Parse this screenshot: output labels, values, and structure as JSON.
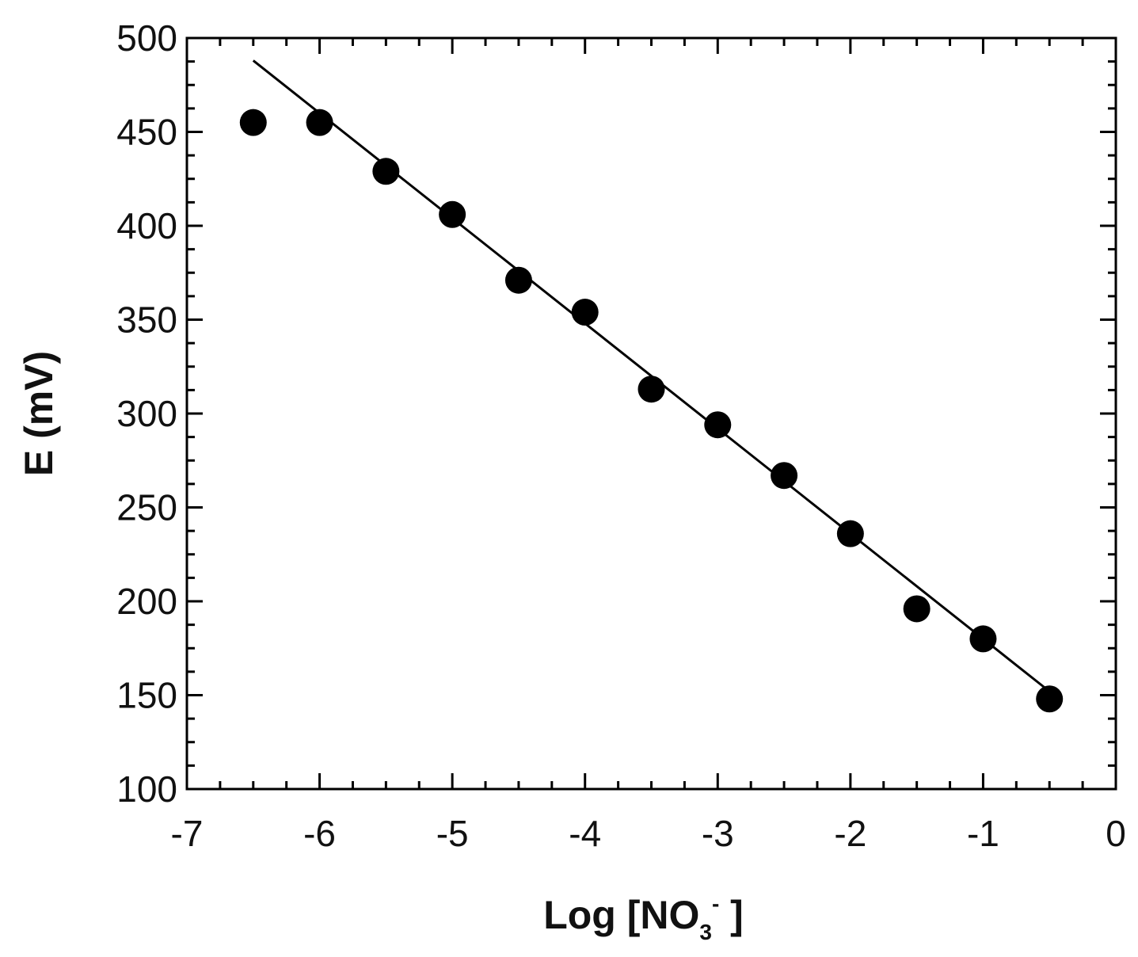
{
  "chart_data": {
    "type": "scatter",
    "xlabel": {
      "prefix": "Log [NO",
      "subscript": "3",
      "superscript": "-",
      "suffix": " ]"
    },
    "ylabel": "E (mV)",
    "xlim": [
      -7,
      0
    ],
    "ylim": [
      100,
      500
    ],
    "x_ticks": [
      "-7",
      "-6",
      "-5",
      "-4",
      "-3",
      "-2",
      "-1",
      "0"
    ],
    "y_ticks": [
      "100",
      "150",
      "200",
      "250",
      "300",
      "350",
      "400",
      "450",
      "500"
    ],
    "x_tick_values": [
      -7,
      -6,
      -5,
      -4,
      -3,
      -2,
      -1,
      0
    ],
    "y_tick_values": [
      100,
      150,
      200,
      250,
      300,
      350,
      400,
      450,
      500
    ],
    "x_minor_step": 0.25,
    "y_minor_step": 12.5,
    "series": [
      {
        "type": "scatter",
        "marker": "filled-circle",
        "color": "#000000",
        "x": [
          -6.5,
          -6.0,
          -5.5,
          -5.0,
          -4.5,
          -4.0,
          -3.5,
          -3.0,
          -2.5,
          -2.0,
          -1.5,
          -1.0,
          -0.5
        ],
        "y": [
          455,
          455,
          429,
          406,
          371,
          354,
          313,
          294,
          267,
          236,
          196,
          180,
          148
        ]
      },
      {
        "type": "line",
        "role": "linear-fit",
        "color": "#000000",
        "x": [
          -6.5,
          -0.5
        ],
        "y": [
          488,
          152
        ]
      }
    ],
    "grid": false,
    "legend": "none",
    "frame": "box"
  }
}
